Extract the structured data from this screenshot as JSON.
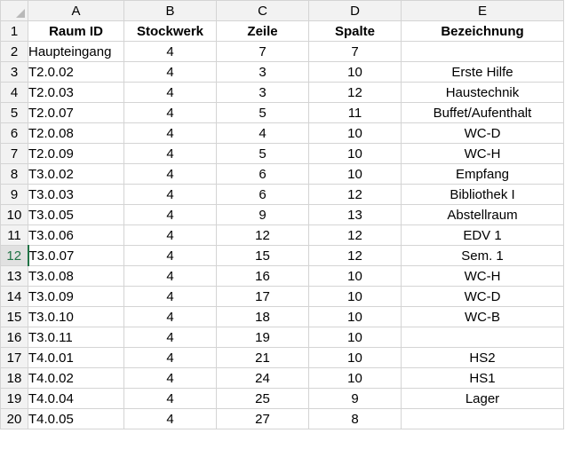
{
  "column_letters": [
    "A",
    "B",
    "C",
    "D",
    "E"
  ],
  "headers": {
    "row_number": "1",
    "cells": [
      "Raum ID",
      "Stockwerk",
      "Zeile",
      "Spalte",
      "Bezeichnung"
    ]
  },
  "rows": [
    {
      "n": "2",
      "cells": [
        "Haupteingang",
        "4",
        "7",
        "7",
        ""
      ]
    },
    {
      "n": "3",
      "cells": [
        "T2.0.02",
        "4",
        "3",
        "10",
        "Erste Hilfe"
      ]
    },
    {
      "n": "4",
      "cells": [
        "T2.0.03",
        "4",
        "3",
        "12",
        "Haustechnik"
      ]
    },
    {
      "n": "5",
      "cells": [
        "T2.0.07",
        "4",
        "5",
        "11",
        "Buffet/Aufenthalt"
      ]
    },
    {
      "n": "6",
      "cells": [
        "T2.0.08",
        "4",
        "4",
        "10",
        "WC-D"
      ]
    },
    {
      "n": "7",
      "cells": [
        "T2.0.09",
        "4",
        "5",
        "10",
        "WC-H"
      ]
    },
    {
      "n": "8",
      "cells": [
        "T3.0.02",
        "4",
        "6",
        "10",
        "Empfang"
      ]
    },
    {
      "n": "9",
      "cells": [
        "T3.0.03",
        "4",
        "6",
        "12",
        "Bibliothek I"
      ]
    },
    {
      "n": "10",
      "cells": [
        "T3.0.05",
        "4",
        "9",
        "13",
        "Abstellraum"
      ]
    },
    {
      "n": "11",
      "cells": [
        "T3.0.06",
        "4",
        "12",
        "12",
        "EDV 1"
      ]
    },
    {
      "n": "12",
      "cells": [
        "T3.0.07",
        "4",
        "15",
        "12",
        "Sem. 1"
      ]
    },
    {
      "n": "13",
      "cells": [
        "T3.0.08",
        "4",
        "16",
        "10",
        "WC-H"
      ]
    },
    {
      "n": "14",
      "cells": [
        "T3.0.09",
        "4",
        "17",
        "10",
        "WC-D"
      ]
    },
    {
      "n": "15",
      "cells": [
        "T3.0.10",
        "4",
        "18",
        "10",
        "WC-B"
      ]
    },
    {
      "n": "16",
      "cells": [
        "T3.0.11",
        "4",
        "19",
        "10",
        ""
      ]
    },
    {
      "n": "17",
      "cells": [
        "T4.0.01",
        "4",
        "21",
        "10",
        "HS2"
      ]
    },
    {
      "n": "18",
      "cells": [
        "T4.0.02",
        "4",
        "24",
        "10",
        "HS1"
      ]
    },
    {
      "n": "19",
      "cells": [
        "T4.0.04",
        "4",
        "25",
        "9",
        "Lager"
      ]
    },
    {
      "n": "20",
      "cells": [
        "T4.0.05",
        "4",
        "27",
        "8",
        ""
      ]
    }
  ],
  "active_row": "12",
  "colors": {
    "header_bg": "#f2f2f2",
    "gridline": "#d4d4d4",
    "active_accent": "#217346"
  }
}
